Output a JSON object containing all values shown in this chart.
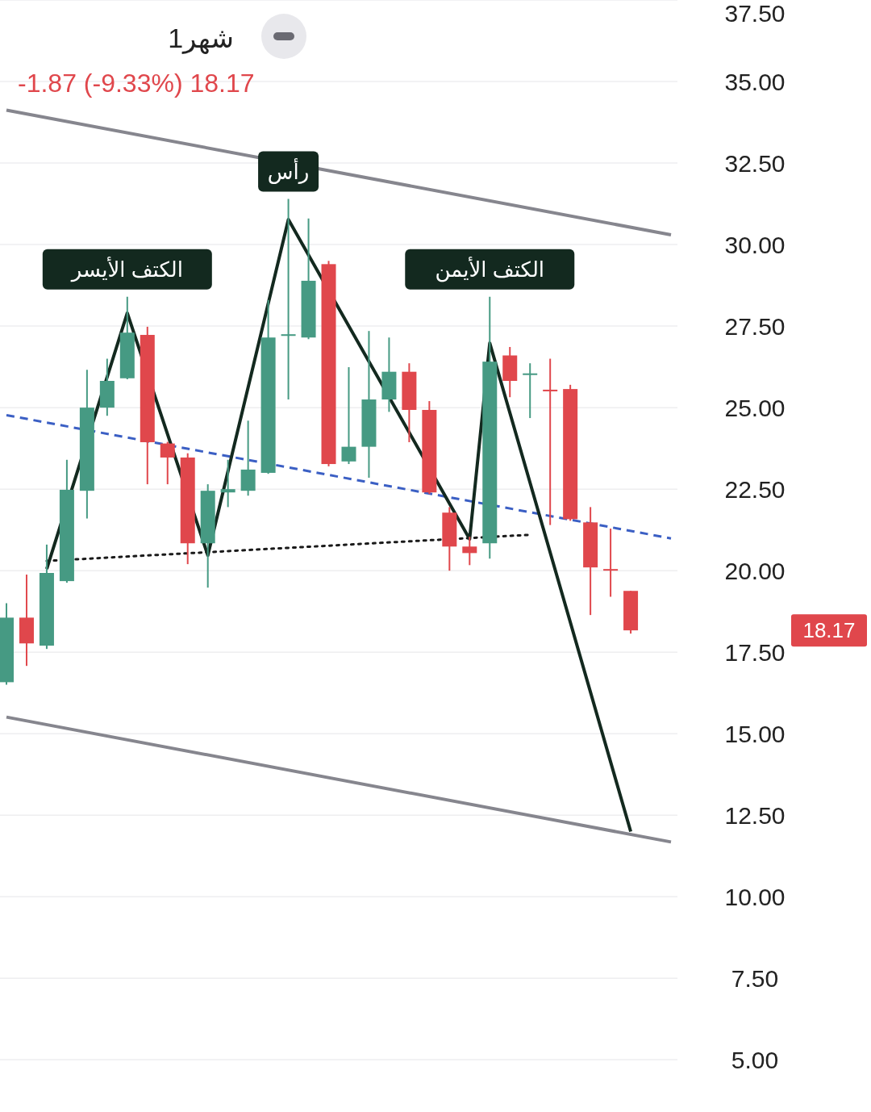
{
  "chart_data": {
    "type": "candlestick",
    "title": "1شهر",
    "subtitle": "-1.87 (-9.33%)  18.17",
    "categories": [
      null,
      null,
      null,
      null,
      null,
      null,
      null,
      null,
      null,
      null,
      null,
      null,
      null,
      null,
      null,
      null,
      null,
      null,
      null,
      null,
      null,
      null,
      null,
      null,
      null,
      null,
      null,
      null,
      null,
      null,
      null,
      null,
      null,
      null
    ],
    "ohlc": [
      [
        16.58,
        19.0,
        16.5,
        18.56
      ],
      [
        18.56,
        19.88,
        17.08,
        17.77
      ],
      [
        17.7,
        20.8,
        17.6,
        19.93
      ],
      [
        19.68,
        23.4,
        19.63,
        22.48
      ],
      [
        22.45,
        26.16,
        21.6,
        25.0
      ],
      [
        25.0,
        26.5,
        24.75,
        25.82
      ],
      [
        25.9,
        28.4,
        25.87,
        27.3
      ],
      [
        27.23,
        27.48,
        22.65,
        23.94
      ],
      [
        23.9,
        23.95,
        22.65,
        23.47
      ],
      [
        23.47,
        23.6,
        20.2,
        20.84
      ],
      [
        20.84,
        22.65,
        19.48,
        22.45
      ],
      [
        22.4,
        23.4,
        21.95,
        22.5
      ],
      [
        22.45,
        24.6,
        22.3,
        23.1
      ],
      [
        23.0,
        28.3,
        22.97,
        27.15
      ],
      [
        27.2,
        31.4,
        25.25,
        27.25
      ],
      [
        27.15,
        30.8,
        27.1,
        28.89
      ],
      [
        29.4,
        29.5,
        23.2,
        23.27
      ],
      [
        23.35,
        26.24,
        23.27,
        23.8
      ],
      [
        23.8,
        27.35,
        22.85,
        25.25
      ],
      [
        25.25,
        27.15,
        24.87,
        26.1
      ],
      [
        26.1,
        26.36,
        23.94,
        24.93
      ],
      [
        24.93,
        25.2,
        22.35,
        22.4
      ],
      [
        21.78,
        21.95,
        20.0,
        20.74
      ],
      [
        20.74,
        21.04,
        20.17,
        20.54
      ],
      [
        20.84,
        28.4,
        20.37,
        26.41
      ],
      [
        26.6,
        26.86,
        25.32,
        25.82
      ],
      [
        26.0,
        26.36,
        24.68,
        26.05
      ],
      [
        25.55,
        26.5,
        21.4,
        25.5
      ],
      [
        25.57,
        25.7,
        21.53,
        21.58
      ],
      [
        21.48,
        21.95,
        18.64,
        20.1
      ],
      [
        20.05,
        21.29,
        19.2,
        20.04
      ],
      [
        19.38,
        19.38,
        18.07,
        18.17
      ],
      null,
      null
    ],
    "colors": [
      "#469a83",
      "#e0474c",
      "#469a83",
      "#469a83",
      "#469a83",
      "#469a83",
      "#469a83",
      "#e0474c",
      "#e0474c",
      "#e0474c",
      "#469a83",
      "#469a83",
      "#469a83",
      "#469a83",
      "#469a83",
      "#469a83",
      "#e0474c",
      "#469a83",
      "#469a83",
      "#469a83",
      "#e0474c",
      "#e0474c",
      "#e0474c",
      "#e0474c",
      "#469a83",
      "#e0474c",
      "#469a83",
      "#e0474c",
      "#e0474c",
      "#e0474c",
      "#e0474c",
      "#e0474c",
      null,
      null
    ],
    "series": [
      {
        "type": "line",
        "color": "#86868e",
        "line_style": "solid",
        "values": [
          34.12,
          null,
          null,
          null,
          null,
          null,
          null,
          null,
          null,
          null,
          null,
          null,
          null,
          null,
          null,
          null,
          null,
          null,
          null,
          null,
          null,
          null,
          null,
          null,
          null,
          null,
          null,
          null,
          null,
          null,
          null,
          null,
          null,
          30.3
        ]
      },
      {
        "type": "line",
        "color": "#86868e",
        "line_style": "solid",
        "values": [
          15.51,
          null,
          null,
          null,
          null,
          null,
          null,
          null,
          null,
          null,
          null,
          null,
          null,
          null,
          null,
          null,
          null,
          null,
          null,
          null,
          null,
          null,
          null,
          null,
          null,
          null,
          null,
          null,
          null,
          null,
          null,
          null,
          null,
          11.68
        ]
      },
      {
        "type": "line",
        "color": "#3b5fc4",
        "line_style": "dashed",
        "values": [
          24.77,
          null,
          null,
          null,
          null,
          null,
          null,
          null,
          null,
          null,
          null,
          null,
          null,
          null,
          null,
          null,
          null,
          null,
          null,
          null,
          null,
          null,
          null,
          null,
          null,
          null,
          null,
          null,
          null,
          null,
          null,
          null,
          null,
          20.99
        ]
      },
      {
        "type": "line",
        "color": "#1a1a1a",
        "line_style": "dotted",
        "values": [
          null,
          null,
          20.3,
          null,
          null,
          null,
          null,
          null,
          null,
          null,
          null,
          null,
          null,
          null,
          null,
          null,
          null,
          null,
          null,
          null,
          null,
          null,
          null,
          null,
          null,
          null,
          21.1,
          null,
          null,
          null,
          null,
          null,
          null,
          null
        ]
      },
      {
        "type": "line",
        "color": "#13291f",
        "line_style": "solid",
        "values": [
          null,
          null,
          20.05,
          null,
          null,
          null,
          27.9,
          null,
          null,
          null,
          20.47,
          null,
          null,
          null,
          30.77,
          null,
          null,
          null,
          null,
          null,
          null,
          null,
          null,
          20.97,
          26.98,
          null,
          null,
          null,
          null,
          null,
          null,
          12.0,
          null,
          null
        ]
      }
    ],
    "annotations": [
      "الكتف الأيسر",
      "رأس",
      "الكتف الأيمن",
      "18.17"
    ],
    "ylim": [
      3.4,
      37.5
    ],
    "yticks": [
      {
        "value": 5,
        "label": "5.00"
      },
      {
        "value": 7.5,
        "label": "7.50"
      },
      {
        "value": 10,
        "label": "10.00"
      },
      {
        "value": 12.5,
        "label": "12.50"
      },
      {
        "value": 15,
        "label": "15.00"
      },
      {
        "value": 17.5,
        "label": "17.50"
      },
      {
        "value": 20,
        "label": "20.00"
      },
      {
        "value": 22.5,
        "label": "22.50"
      },
      {
        "value": 25,
        "label": "25.00"
      },
      {
        "value": 27.5,
        "label": "27.50"
      },
      {
        "value": 30,
        "label": "30.00"
      },
      {
        "value": 32.5,
        "label": "32.50"
      },
      {
        "value": 35,
        "label": "35.00"
      },
      {
        "value": 37.5,
        "label": "37.50"
      }
    ],
    "grid": "y",
    "tick_labels": "y"
  }
}
